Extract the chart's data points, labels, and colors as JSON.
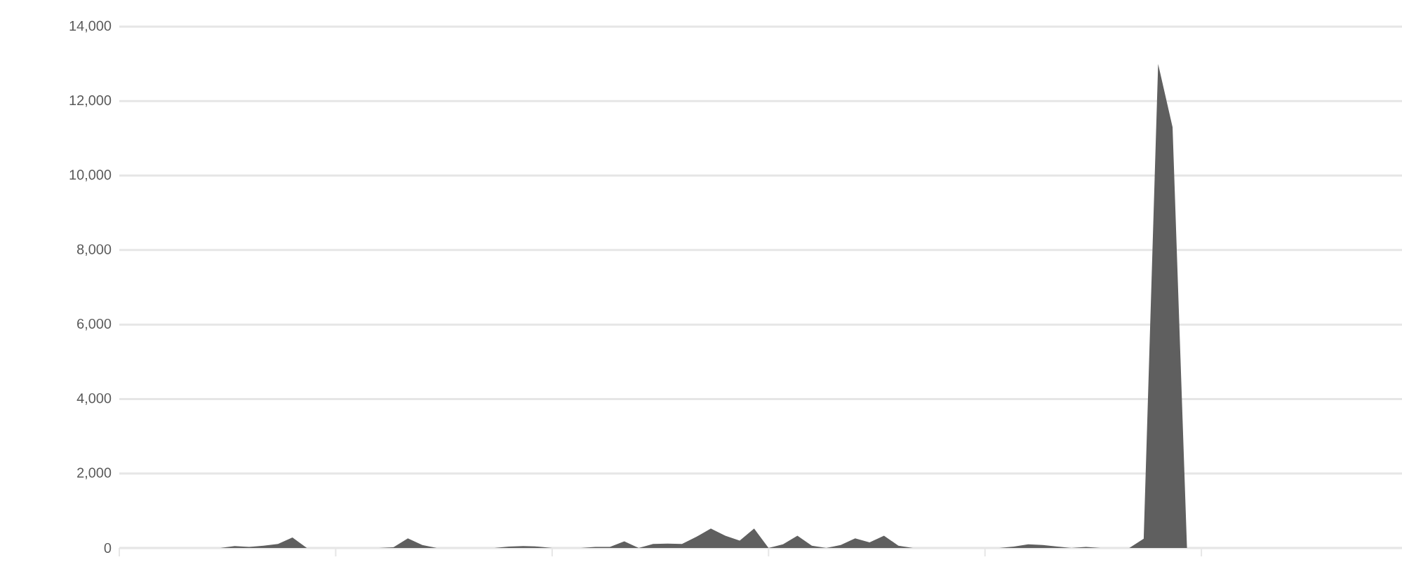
{
  "chart_data": {
    "type": "area",
    "categories": [
      null,
      null,
      null,
      null,
      null,
      null,
      null,
      null,
      null,
      null,
      null,
      null,
      null,
      null,
      null,
      null,
      null,
      null,
      null,
      null,
      null,
      null,
      null,
      null,
      null,
      null,
      null,
      null,
      null,
      null,
      null,
      null,
      null,
      null,
      null,
      null,
      null,
      null,
      null,
      null,
      null,
      null,
      null,
      null,
      null,
      null,
      null,
      null,
      null,
      null,
      null,
      null,
      null,
      null,
      null,
      null,
      null,
      null,
      null,
      null,
      null,
      null,
      null,
      null,
      null,
      null,
      null,
      null,
      null,
      null,
      null,
      null,
      null,
      null,
      null,
      null,
      null,
      null,
      null,
      null,
      null,
      null,
      null,
      null,
      null,
      null,
      null,
      null,
      null,
      null
    ],
    "values": [
      0,
      0,
      0,
      0,
      0,
      0,
      0,
      0,
      50,
      30,
      60,
      110,
      280,
      0,
      0,
      0,
      0,
      0,
      0,
      20,
      260,
      80,
      0,
      0,
      0,
      0,
      0,
      40,
      50,
      40,
      0,
      0,
      0,
      30,
      30,
      180,
      0,
      110,
      120,
      110,
      300,
      520,
      330,
      200,
      520,
      0,
      100,
      330,
      60,
      0,
      80,
      260,
      150,
      330,
      60,
      0,
      0,
      0,
      0,
      0,
      0,
      0,
      40,
      100,
      80,
      40,
      0,
      30,
      0,
      0,
      0,
      250,
      13000,
      11300,
      0,
      0,
      0,
      0,
      0,
      0,
      0,
      0,
      0,
      0,
      0,
      0,
      0,
      0,
      0,
      0
    ],
    "color": "#5f5f5f",
    "ylim": [
      0,
      14000
    ],
    "yticks": [
      {
        "value": 0,
        "label": "0"
      },
      {
        "value": 2000,
        "label": "2,000"
      },
      {
        "value": 4000,
        "label": "4,000"
      },
      {
        "value": 6000,
        "label": "6,000"
      },
      {
        "value": 8000,
        "label": "8,000"
      },
      {
        "value": 10000,
        "label": "10,000"
      },
      {
        "value": 12000,
        "label": "12,000"
      },
      {
        "value": 14000,
        "label": "14,000"
      }
    ],
    "grid": "y",
    "tick_labels": "y"
  }
}
